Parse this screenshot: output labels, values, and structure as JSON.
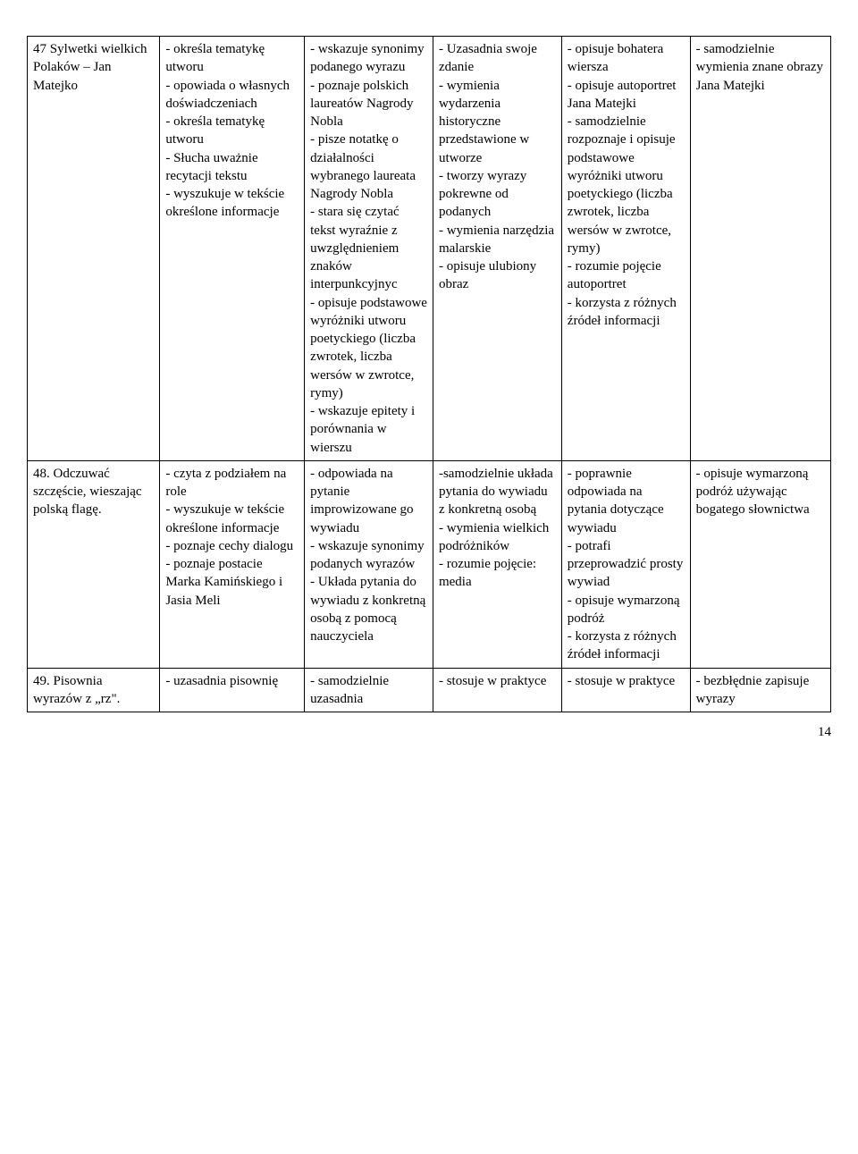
{
  "table": {
    "rows": [
      {
        "c1": "",
        "c2": "",
        "c3": "- wskazuje synonimy podanego wyrazu\n- poznaje polskich laureatów Nagrody Nobla\n- pisze notatkę o działalności wybranego laureata Nagrody Nobla",
        "c4": "",
        "c5": "",
        "c6": ""
      },
      {
        "c1": "47 Sylwetki wielkich Polaków – Jan Matejko",
        "c2": "- określa tematykę utworu\n-  opowiada o własnych doświadczeniach\n- określa tematykę utworu\n- Słucha  uważnie recytacji tekstu\n- wyszukuje w tekście określone informacje",
        "c3": "-  stara się czytać tekst wyraźnie z uwzględnieniem znaków interpunkcyjnyc\n- opisuje podstawowe wyróżniki utworu poetyckiego (liczba zwrotek, liczba wersów w zwrotce, rymy)\n- wskazuje epitety i porównania w wierszu",
        "c4": "- Uzasadnia swoje zdanie\n- wymienia wydarzenia historyczne przedstawione w utworze\n- tworzy wyrazy pokrewne od podanych\n- wymienia narzędzia malarskie\n- opisuje ulubiony obraz",
        "c5": "- opisuje bohatera wiersza\n- opisuje autoportret Jana Matejki\n- samodzielnie rozpoznaje i opisuje podstawowe wyróżniki utworu poetyckiego (liczba zwrotek, liczba wersów  w zwrotce, rymy)\n- rozumie pojęcie autoportret\n- korzysta z różnych źródeł informacji",
        "c6": "- samodzielnie wymienia znane obrazy Jana Matejki"
      },
      {
        "c1": "48. Odczuwać szczęście, wieszając polską flagę.",
        "c2": "- czyta z podziałem na role\n- wyszukuje w tekście określone informacje\n- poznaje cechy dialogu\n- poznaje postacie Marka Kamińskiego i Jasia Meli",
        "c3": "- odpowiada na pytanie improwizowane go wywiadu\n- wskazuje synonimy podanych wyrazów\n- Układa pytania do wywiadu z konkretną osobą z pomocą nauczyciela",
        "c4": " -samodzielnie układa pytania do wywiadu z konkretną osobą\n- wymienia wielkich podróżników\n- rozumie pojęcie: media",
        "c5": "- poprawnie odpowiada na pytania dotyczące wywiadu\n- potrafi przeprowadzić prosty wywiad\n- opisuje wymarzoną podróż\n- korzysta z różnych źródeł informacji",
        "c6": "- opisuje wymarzoną podróż używając bogatego słownictwa"
      },
      {
        "c1": "49. Pisownia wyrazów z „rz\".",
        "c2": "- uzasadnia pisownię",
        "c3": "- samodzielnie uzasadnia",
        "c4": "- stosuje w praktyce",
        "c5": "- stosuje w praktyce",
        "c6": "- bezbłędnie zapisuje wyrazy"
      }
    ]
  },
  "page_number": "14"
}
